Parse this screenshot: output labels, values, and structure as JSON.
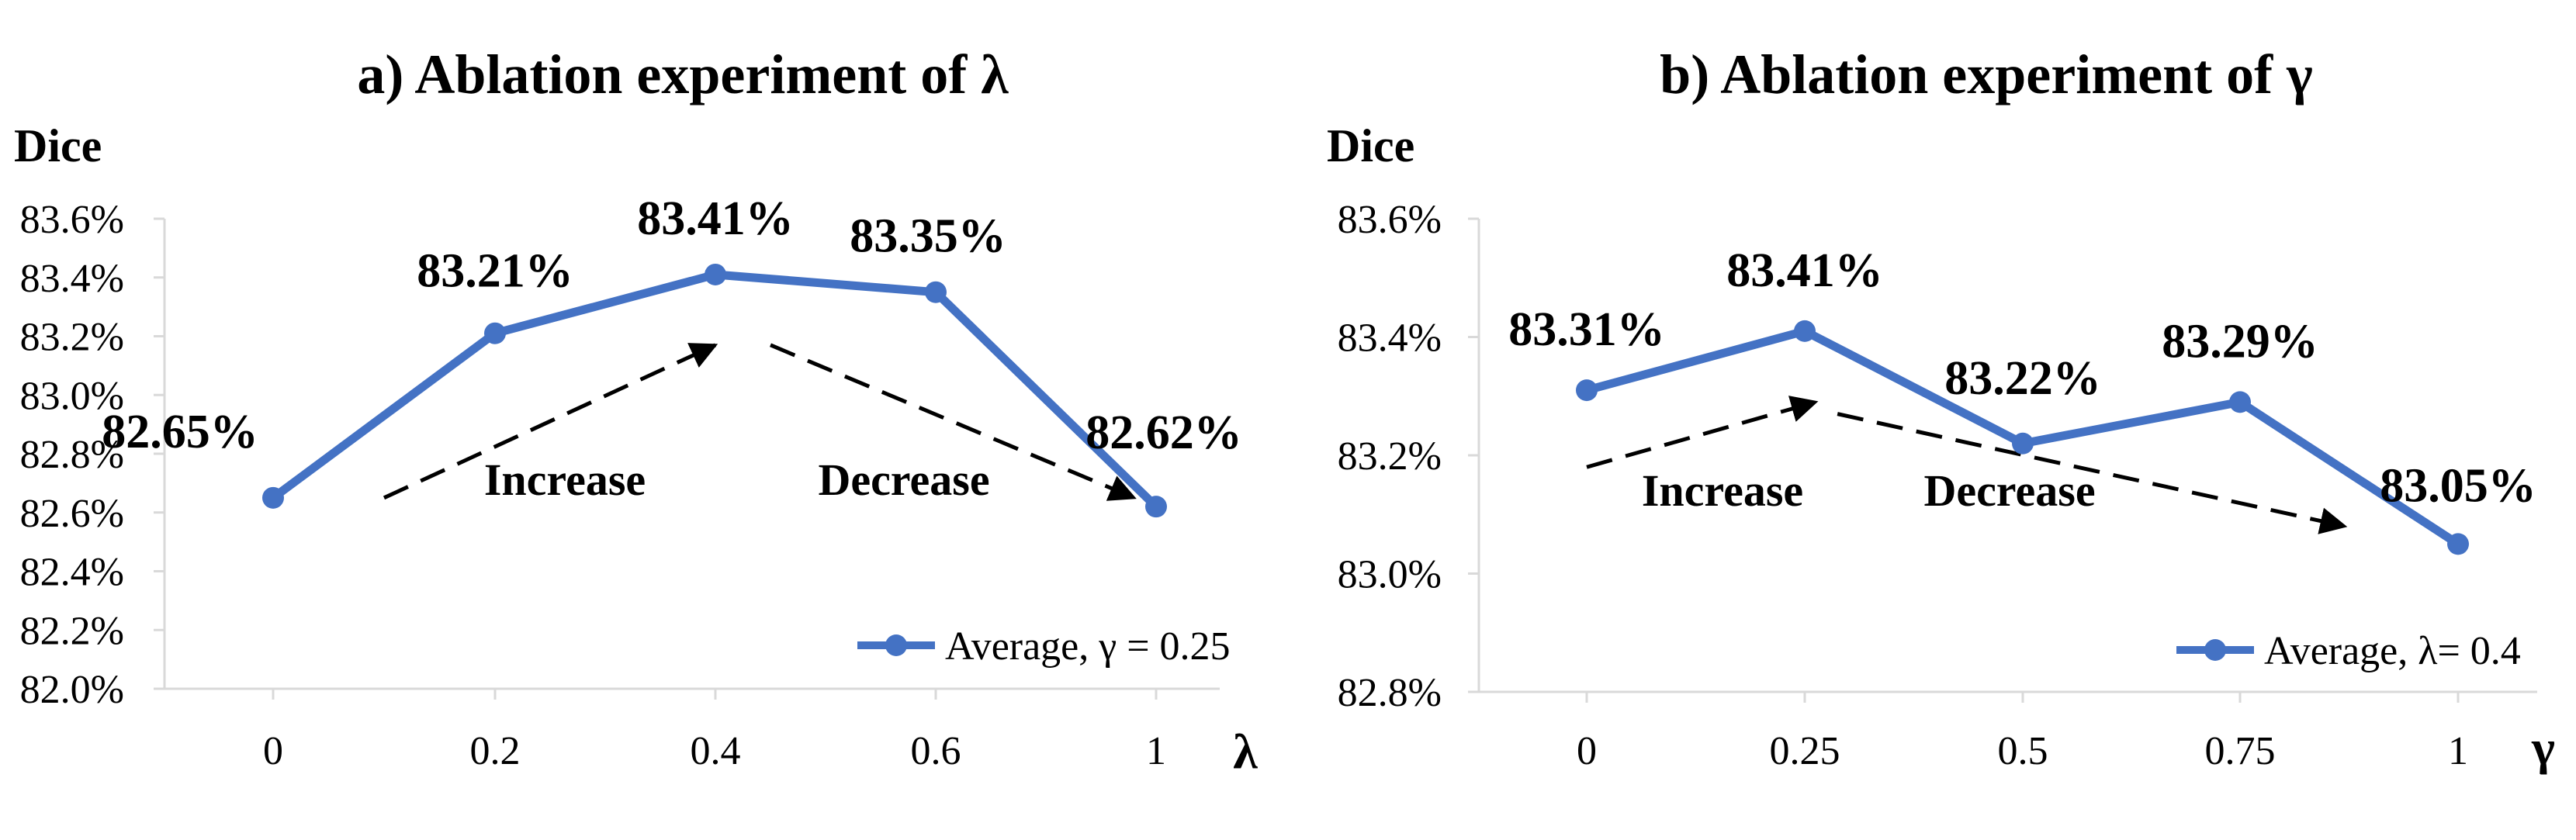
{
  "colors": {
    "line": "#4472C4",
    "axis": "#d9d9d9",
    "text": "#000000",
    "arrow": "#000000"
  },
  "chart_data": [
    {
      "type": "line",
      "title": "a) Ablation experiment of λ",
      "ylabel": "Dice",
      "xlabel": "λ",
      "categories": [
        "0",
        "0.2",
        "0.4",
        "0.6",
        "1"
      ],
      "ylim": [
        82.0,
        83.6
      ],
      "ytick_step": 0.2,
      "yticks": [
        "82.0%",
        "82.2%",
        "82.4%",
        "82.6%",
        "82.8%",
        "83.0%",
        "83.2%",
        "83.4%",
        "83.6%"
      ],
      "series": [
        {
          "name": "Average, γ = 0.25",
          "values": [
            82.65,
            83.21,
            83.41,
            83.35,
            82.62
          ]
        }
      ],
      "data_labels": [
        "82.65%",
        "83.21%",
        "83.41%",
        "83.35%",
        "82.62%"
      ],
      "annotations": [
        {
          "text": "Increase",
          "arrow_from": [
            0.5,
            82.65
          ],
          "arrow_to": [
            2.0,
            83.17
          ]
        },
        {
          "text": "Decrease",
          "arrow_from": [
            2.25,
            83.17
          ],
          "arrow_to": [
            3.9,
            82.65
          ]
        }
      ],
      "legend": "bottom-right",
      "grid": false
    },
    {
      "type": "line",
      "title": "b) Ablation experiment of γ",
      "ylabel": "Dice",
      "xlabel": "γ",
      "categories": [
        "0",
        "0.25",
        "0.5",
        "0.75",
        "1"
      ],
      "ylim": [
        82.8,
        83.6
      ],
      "ytick_step": 0.2,
      "yticks": [
        "82.8%",
        "83.0%",
        "83.2%",
        "83.4%",
        "83.6%"
      ],
      "series": [
        {
          "name": "Average, λ= 0.4",
          "values": [
            83.31,
            83.41,
            83.22,
            83.29,
            83.05
          ]
        }
      ],
      "data_labels": [
        "83.31%",
        "83.41%",
        "83.22%",
        "83.29%",
        "83.05%"
      ],
      "annotations": [
        {
          "text": "Increase",
          "arrow_from": [
            0.0,
            83.18
          ],
          "arrow_to": [
            1.05,
            83.29
          ]
        },
        {
          "text": "Decrease",
          "arrow_from": [
            1.15,
            83.27
          ],
          "arrow_to": [
            3.48,
            83.08
          ]
        }
      ],
      "legend": "bottom-right",
      "grid": false
    }
  ]
}
